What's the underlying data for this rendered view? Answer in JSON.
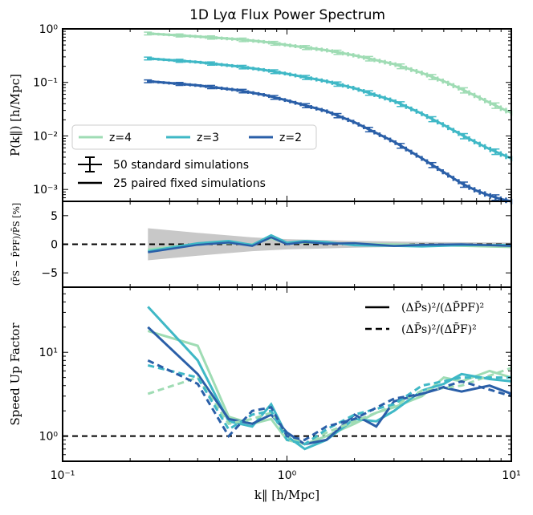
{
  "figure_title": "1D Lyα Flux Power Spectrum",
  "colors": {
    "z4": "#9fdcb4",
    "z3": "#3fb8c6",
    "z2": "#2a5fa8",
    "band": "#c8c8c8",
    "axis": "#000000"
  },
  "chart_data": [
    {
      "type": "line",
      "id": "power",
      "title": "1D Lyα Flux Power Spectrum",
      "ylabel": "P(k‖) [h/Mpc]",
      "xscale": "log",
      "yscale": "log",
      "xlim": [
        0.1,
        10
      ],
      "ylim": [
        0.0006,
        1.0
      ],
      "yticks": [
        {
          "v": 1,
          "label": "10⁰"
        },
        {
          "v": 0.1,
          "label": "10⁻¹"
        },
        {
          "v": 0.01,
          "label": "10⁻²"
        },
        {
          "v": 0.001,
          "label": "10⁻³"
        }
      ],
      "series": [
        {
          "name": "z=4",
          "color_key": "z4",
          "x": [
            0.24,
            0.4,
            0.6,
            0.8,
            1.0,
            1.5,
            2.0,
            3.0,
            4.0,
            5.0,
            6.0,
            7.0,
            8.0,
            9.0,
            10.0
          ],
          "y": [
            0.82,
            0.72,
            0.64,
            0.57,
            0.5,
            0.4,
            0.32,
            0.22,
            0.15,
            0.105,
            0.075,
            0.055,
            0.042,
            0.033,
            0.027
          ]
        },
        {
          "name": "z=3",
          "color_key": "z3",
          "x": [
            0.24,
            0.4,
            0.6,
            0.8,
            1.0,
            1.5,
            2.0,
            3.0,
            4.0,
            5.0,
            6.0,
            7.0,
            8.0,
            9.0,
            10.0
          ],
          "y": [
            0.28,
            0.24,
            0.2,
            0.17,
            0.145,
            0.105,
            0.078,
            0.045,
            0.026,
            0.016,
            0.0105,
            0.0075,
            0.0057,
            0.0046,
            0.0038
          ]
        },
        {
          "name": "z=2",
          "color_key": "z2",
          "x": [
            0.24,
            0.4,
            0.6,
            0.8,
            1.0,
            1.5,
            2.0,
            3.0,
            4.0,
            5.0,
            6.0,
            7.0,
            8.0,
            9.0,
            10.0
          ],
          "y": [
            0.105,
            0.088,
            0.072,
            0.058,
            0.046,
            0.029,
            0.018,
            0.0078,
            0.0038,
            0.0021,
            0.0013,
            0.00095,
            0.00077,
            0.00066,
            0.0006
          ]
        }
      ],
      "legend": {
        "position": "lower-left",
        "entries": [
          "z=4",
          "z=3",
          "z=2"
        ],
        "errorbar_label": "50 standard      simulations",
        "line_label": "25 paired fixed simulations"
      }
    },
    {
      "type": "line",
      "id": "ratio",
      "ylabel": "(P̄S − P̄PF)/P̄S [%]",
      "xscale": "log",
      "xlim": [
        0.1,
        10
      ],
      "ylim": [
        -7.5,
        7.5
      ],
      "yticks": [
        {
          "v": 5,
          "label": "5"
        },
        {
          "v": 0,
          "label": "0"
        },
        {
          "v": -5,
          "label": "−5"
        }
      ],
      "reference_line": 0,
      "band": {
        "x": [
          0.24,
          0.4,
          0.7,
          1.0,
          2.0,
          4.0,
          10.0
        ],
        "lower": [
          -2.8,
          -2.0,
          -1.2,
          -0.9,
          -0.6,
          -0.4,
          -0.3
        ],
        "upper": [
          2.8,
          2.0,
          1.2,
          0.9,
          0.6,
          0.4,
          0.3
        ]
      },
      "series": [
        {
          "name": "z=4",
          "color_key": "z4",
          "x": [
            0.24,
            0.4,
            0.55,
            0.7,
            0.85,
            1.0,
            1.2,
            1.5,
            2.0,
            3.0,
            4.0,
            6.0,
            10.0
          ],
          "y": [
            -0.9,
            0.1,
            0.2,
            0.0,
            1.0,
            0.1,
            0.3,
            0.2,
            0.1,
            0.0,
            -0.1,
            -0.3,
            -0.5
          ]
        },
        {
          "name": "z=3",
          "color_key": "z3",
          "x": [
            0.24,
            0.4,
            0.55,
            0.7,
            0.85,
            1.0,
            1.2,
            1.5,
            2.0,
            3.0,
            4.0,
            6.0,
            10.0
          ],
          "y": [
            -1.2,
            0.2,
            0.6,
            -0.1,
            1.6,
            0.3,
            0.6,
            0.4,
            -0.2,
            -0.3,
            -0.4,
            -0.2,
            -0.1
          ]
        },
        {
          "name": "z=2",
          "color_key": "z2",
          "x": [
            0.24,
            0.4,
            0.55,
            0.7,
            0.85,
            1.0,
            1.2,
            1.5,
            2.0,
            3.0,
            4.0,
            6.0,
            10.0
          ],
          "y": [
            -1.4,
            -0.1,
            0.3,
            -0.3,
            1.2,
            0.0,
            0.4,
            0.1,
            0.2,
            -0.3,
            -0.1,
            0.0,
            -0.3
          ]
        }
      ]
    },
    {
      "type": "line",
      "id": "speedup",
      "ylabel": "Speed Up Factor",
      "xlabel": "k‖ [h/Mpc]",
      "xscale": "log",
      "yscale": "log",
      "xlim": [
        0.1,
        10
      ],
      "ylim": [
        0.5,
        60
      ],
      "xticks": [
        {
          "v": 0.1,
          "label": "10⁻¹"
        },
        {
          "v": 1,
          "label": "10⁰"
        },
        {
          "v": 10,
          "label": "10¹"
        }
      ],
      "yticks": [
        {
          "v": 1,
          "label": "10⁰"
        },
        {
          "v": 10,
          "label": "10¹"
        }
      ],
      "reference_line": 1,
      "legend": {
        "position": "top-right",
        "solid_label": "(ΔP̄s)²/(ΔP̄PF)²",
        "dashed_label": "(ΔP̄s)²/(ΔP̄F)²"
      },
      "series": [
        {
          "name": "z=4 paired fixed",
          "color_key": "z4",
          "style": "solid",
          "x": [
            0.24,
            0.4,
            0.55,
            0.7,
            0.85,
            1.0,
            1.2,
            1.5,
            2.0,
            2.5,
            3.0,
            4.0,
            5.0,
            6.0,
            8.0,
            10.0
          ],
          "y": [
            18,
            12,
            1.7,
            1.4,
            1.6,
            0.9,
            0.8,
            1.0,
            1.4,
            1.9,
            2.2,
            3.0,
            5.0,
            4.5,
            6.0,
            5.0
          ]
        },
        {
          "name": "z=3 paired fixed",
          "color_key": "z3",
          "style": "solid",
          "x": [
            0.24,
            0.4,
            0.55,
            0.7,
            0.85,
            1.0,
            1.2,
            1.5,
            2.0,
            2.5,
            3.0,
            4.0,
            5.0,
            6.0,
            8.0,
            10.0
          ],
          "y": [
            35,
            8,
            1.5,
            1.3,
            2.4,
            1.0,
            0.7,
            0.9,
            1.6,
            1.5,
            2.0,
            3.5,
            4.2,
            5.5,
            4.8,
            4.5
          ]
        },
        {
          "name": "z=2 paired fixed",
          "color_key": "z2",
          "style": "solid",
          "x": [
            0.24,
            0.4,
            0.55,
            0.7,
            0.85,
            1.0,
            1.2,
            1.5,
            2.0,
            2.5,
            3.0,
            4.0,
            5.0,
            6.0,
            8.0,
            10.0
          ],
          "y": [
            20,
            5.5,
            1.6,
            1.4,
            1.8,
            1.1,
            0.8,
            0.9,
            1.8,
            1.3,
            2.6,
            3.2,
            3.8,
            3.4,
            4.0,
            3.2
          ]
        },
        {
          "name": "z=4 fixed",
          "color_key": "z4",
          "style": "dashed",
          "x": [
            0.24,
            0.4,
            0.55,
            0.7,
            0.85,
            1.0,
            1.2,
            1.5,
            2.0,
            3.0,
            4.0,
            6.0,
            10.0
          ],
          "y": [
            3.2,
            5.0,
            1.4,
            1.6,
            1.9,
            1.0,
            0.8,
            1.1,
            1.5,
            2.3,
            3.5,
            4.0,
            6.5
          ]
        },
        {
          "name": "z=3 fixed",
          "color_key": "z3",
          "style": "dashed",
          "x": [
            0.24,
            0.4,
            0.55,
            0.7,
            0.85,
            1.0,
            1.2,
            1.5,
            2.0,
            3.0,
            4.0,
            6.0,
            10.0
          ],
          "y": [
            7.0,
            5.0,
            1.2,
            1.8,
            2.0,
            0.9,
            0.8,
            1.2,
            1.8,
            2.4,
            4.0,
            5.0,
            5.0
          ]
        },
        {
          "name": "z=2 fixed",
          "color_key": "z2",
          "style": "dashed",
          "x": [
            0.24,
            0.4,
            0.55,
            0.7,
            0.85,
            1.0,
            1.2,
            1.5,
            2.0,
            3.0,
            4.0,
            6.0,
            10.0
          ],
          "y": [
            8.0,
            4.2,
            1.0,
            2.0,
            2.2,
            1.0,
            0.9,
            1.3,
            1.6,
            2.8,
            3.2,
            4.5,
            3.0
          ]
        }
      ]
    }
  ]
}
